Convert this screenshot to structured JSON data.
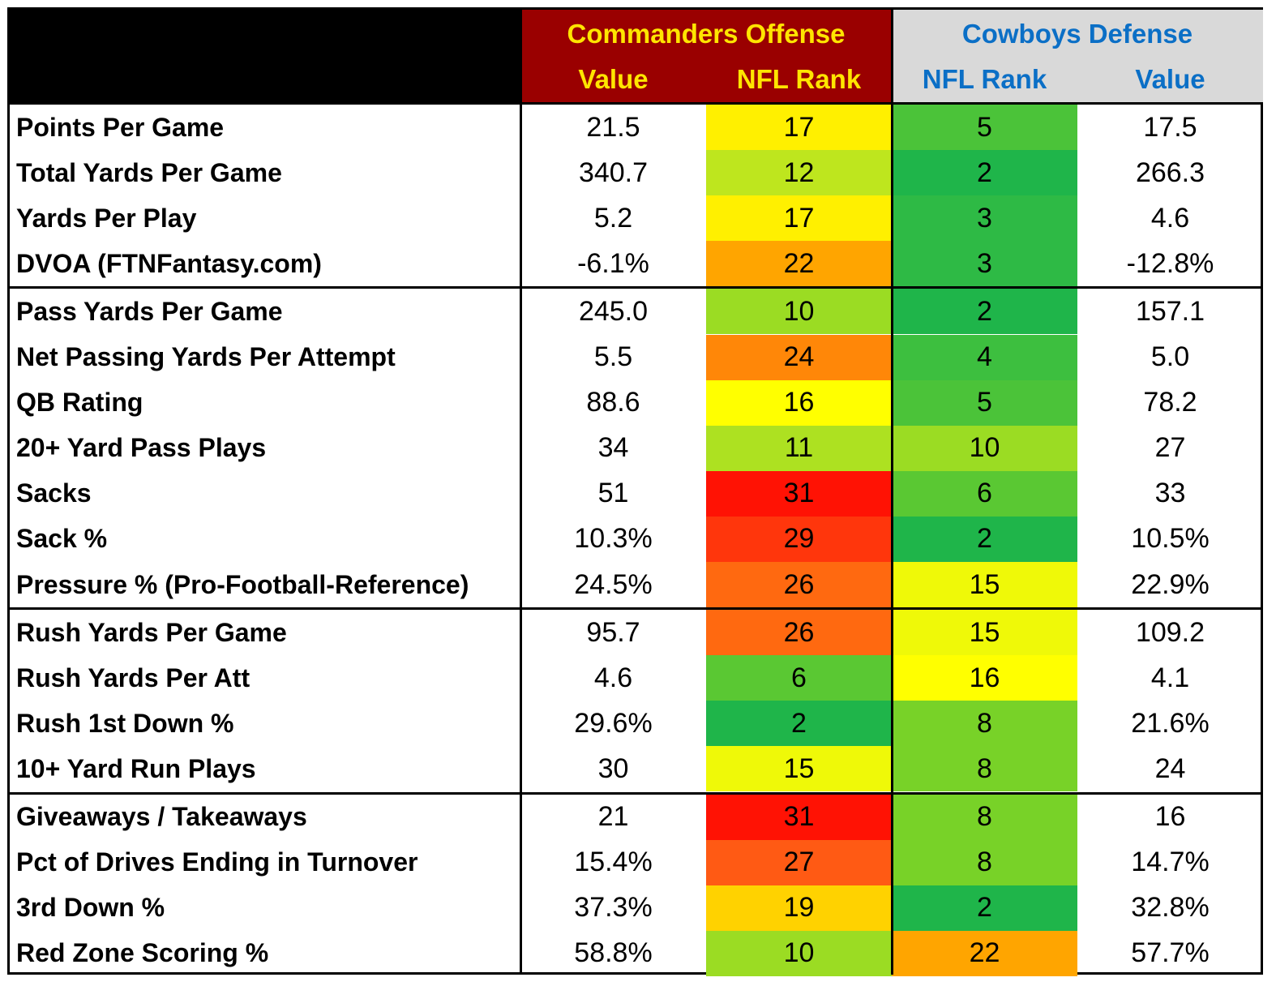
{
  "header": {
    "commanders_title": "Commanders Offense",
    "cowboys_title": "Cowboys Defense",
    "col_value": "Value",
    "col_rank": "NFL Rank"
  },
  "colors": {
    "header_black": "#000000",
    "commanders_bg": "#9A0000",
    "commanders_text": "#FFE500",
    "cowboys_bg": "#D9D9D9",
    "cowboys_text": "#0B6FC6"
  },
  "chart_data": {
    "type": "table",
    "columns": [
      "",
      "Value",
      "NFL Rank",
      "NFL Rank",
      "Value"
    ],
    "groups": [
      {
        "name": "Commanders Offense",
        "columns": [
          "Value",
          "NFL Rank"
        ]
      },
      {
        "name": "Cowboys Defense",
        "columns": [
          "NFL Rank",
          "Value"
        ]
      }
    ],
    "sections": [
      [
        {
          "label": "Points Per Game",
          "off_value": "21.5",
          "off_rank": 17,
          "def_rank": 5,
          "def_value": "17.5"
        },
        {
          "label": "Total Yards Per Game",
          "off_value": "340.7",
          "off_rank": 12,
          "def_rank": 2,
          "def_value": "266.3"
        },
        {
          "label": "Yards Per Play",
          "off_value": "5.2",
          "off_rank": 17,
          "def_rank": 3,
          "def_value": "4.6"
        },
        {
          "label": "DVOA (FTNFantasy.com)",
          "off_value": "-6.1%",
          "off_rank": 22,
          "def_rank": 3,
          "def_value": "-12.8%"
        }
      ],
      [
        {
          "label": "Pass Yards Per Game",
          "off_value": "245.0",
          "off_rank": 10,
          "def_rank": 2,
          "def_value": "157.1"
        },
        {
          "label": "Net Passing Yards Per Attempt",
          "off_value": "5.5",
          "off_rank": 24,
          "def_rank": 4,
          "def_value": "5.0"
        },
        {
          "label": "QB Rating",
          "off_value": "88.6",
          "off_rank": 16,
          "def_rank": 5,
          "def_value": "78.2"
        },
        {
          "label": "20+ Yard Pass Plays",
          "off_value": "34",
          "off_rank": 11,
          "def_rank": 10,
          "def_value": "27"
        },
        {
          "label": "Sacks",
          "off_value": "51",
          "off_rank": 31,
          "def_rank": 6,
          "def_value": "33"
        },
        {
          "label": "Sack %",
          "off_value": "10.3%",
          "off_rank": 29,
          "def_rank": 2,
          "def_value": "10.5%"
        },
        {
          "label": "Pressure % (Pro-Football-Reference)",
          "off_value": "24.5%",
          "off_rank": 26,
          "def_rank": 15,
          "def_value": "22.9%"
        }
      ],
      [
        {
          "label": "Rush Yards Per Game",
          "off_value": "95.7",
          "off_rank": 26,
          "def_rank": 15,
          "def_value": "109.2"
        },
        {
          "label": "Rush Yards Per Att",
          "off_value": "4.6",
          "off_rank": 6,
          "def_rank": 16,
          "def_value": "4.1"
        },
        {
          "label": "Rush 1st Down %",
          "off_value": "29.6%",
          "off_rank": 2,
          "def_rank": 8,
          "def_value": "21.6%"
        },
        {
          "label": "10+ Yard Run Plays",
          "off_value": "30",
          "off_rank": 15,
          "def_rank": 8,
          "def_value": "24"
        }
      ],
      [
        {
          "label": "Giveaways / Takeaways",
          "off_value": "21",
          "off_rank": 31,
          "def_rank": 8,
          "def_value": "16"
        },
        {
          "label": "Pct of Drives Ending in Turnover",
          "off_value": "15.4%",
          "off_rank": 27,
          "def_rank": 8,
          "def_value": "14.7%"
        },
        {
          "label": "3rd Down %",
          "off_value": "37.3%",
          "off_rank": 19,
          "def_rank": 2,
          "def_value": "32.8%"
        },
        {
          "label": "Red Zone Scoring %",
          "off_value": "58.8%",
          "off_rank": 10,
          "def_rank": 22,
          "def_value": "57.7%"
        }
      ]
    ]
  }
}
